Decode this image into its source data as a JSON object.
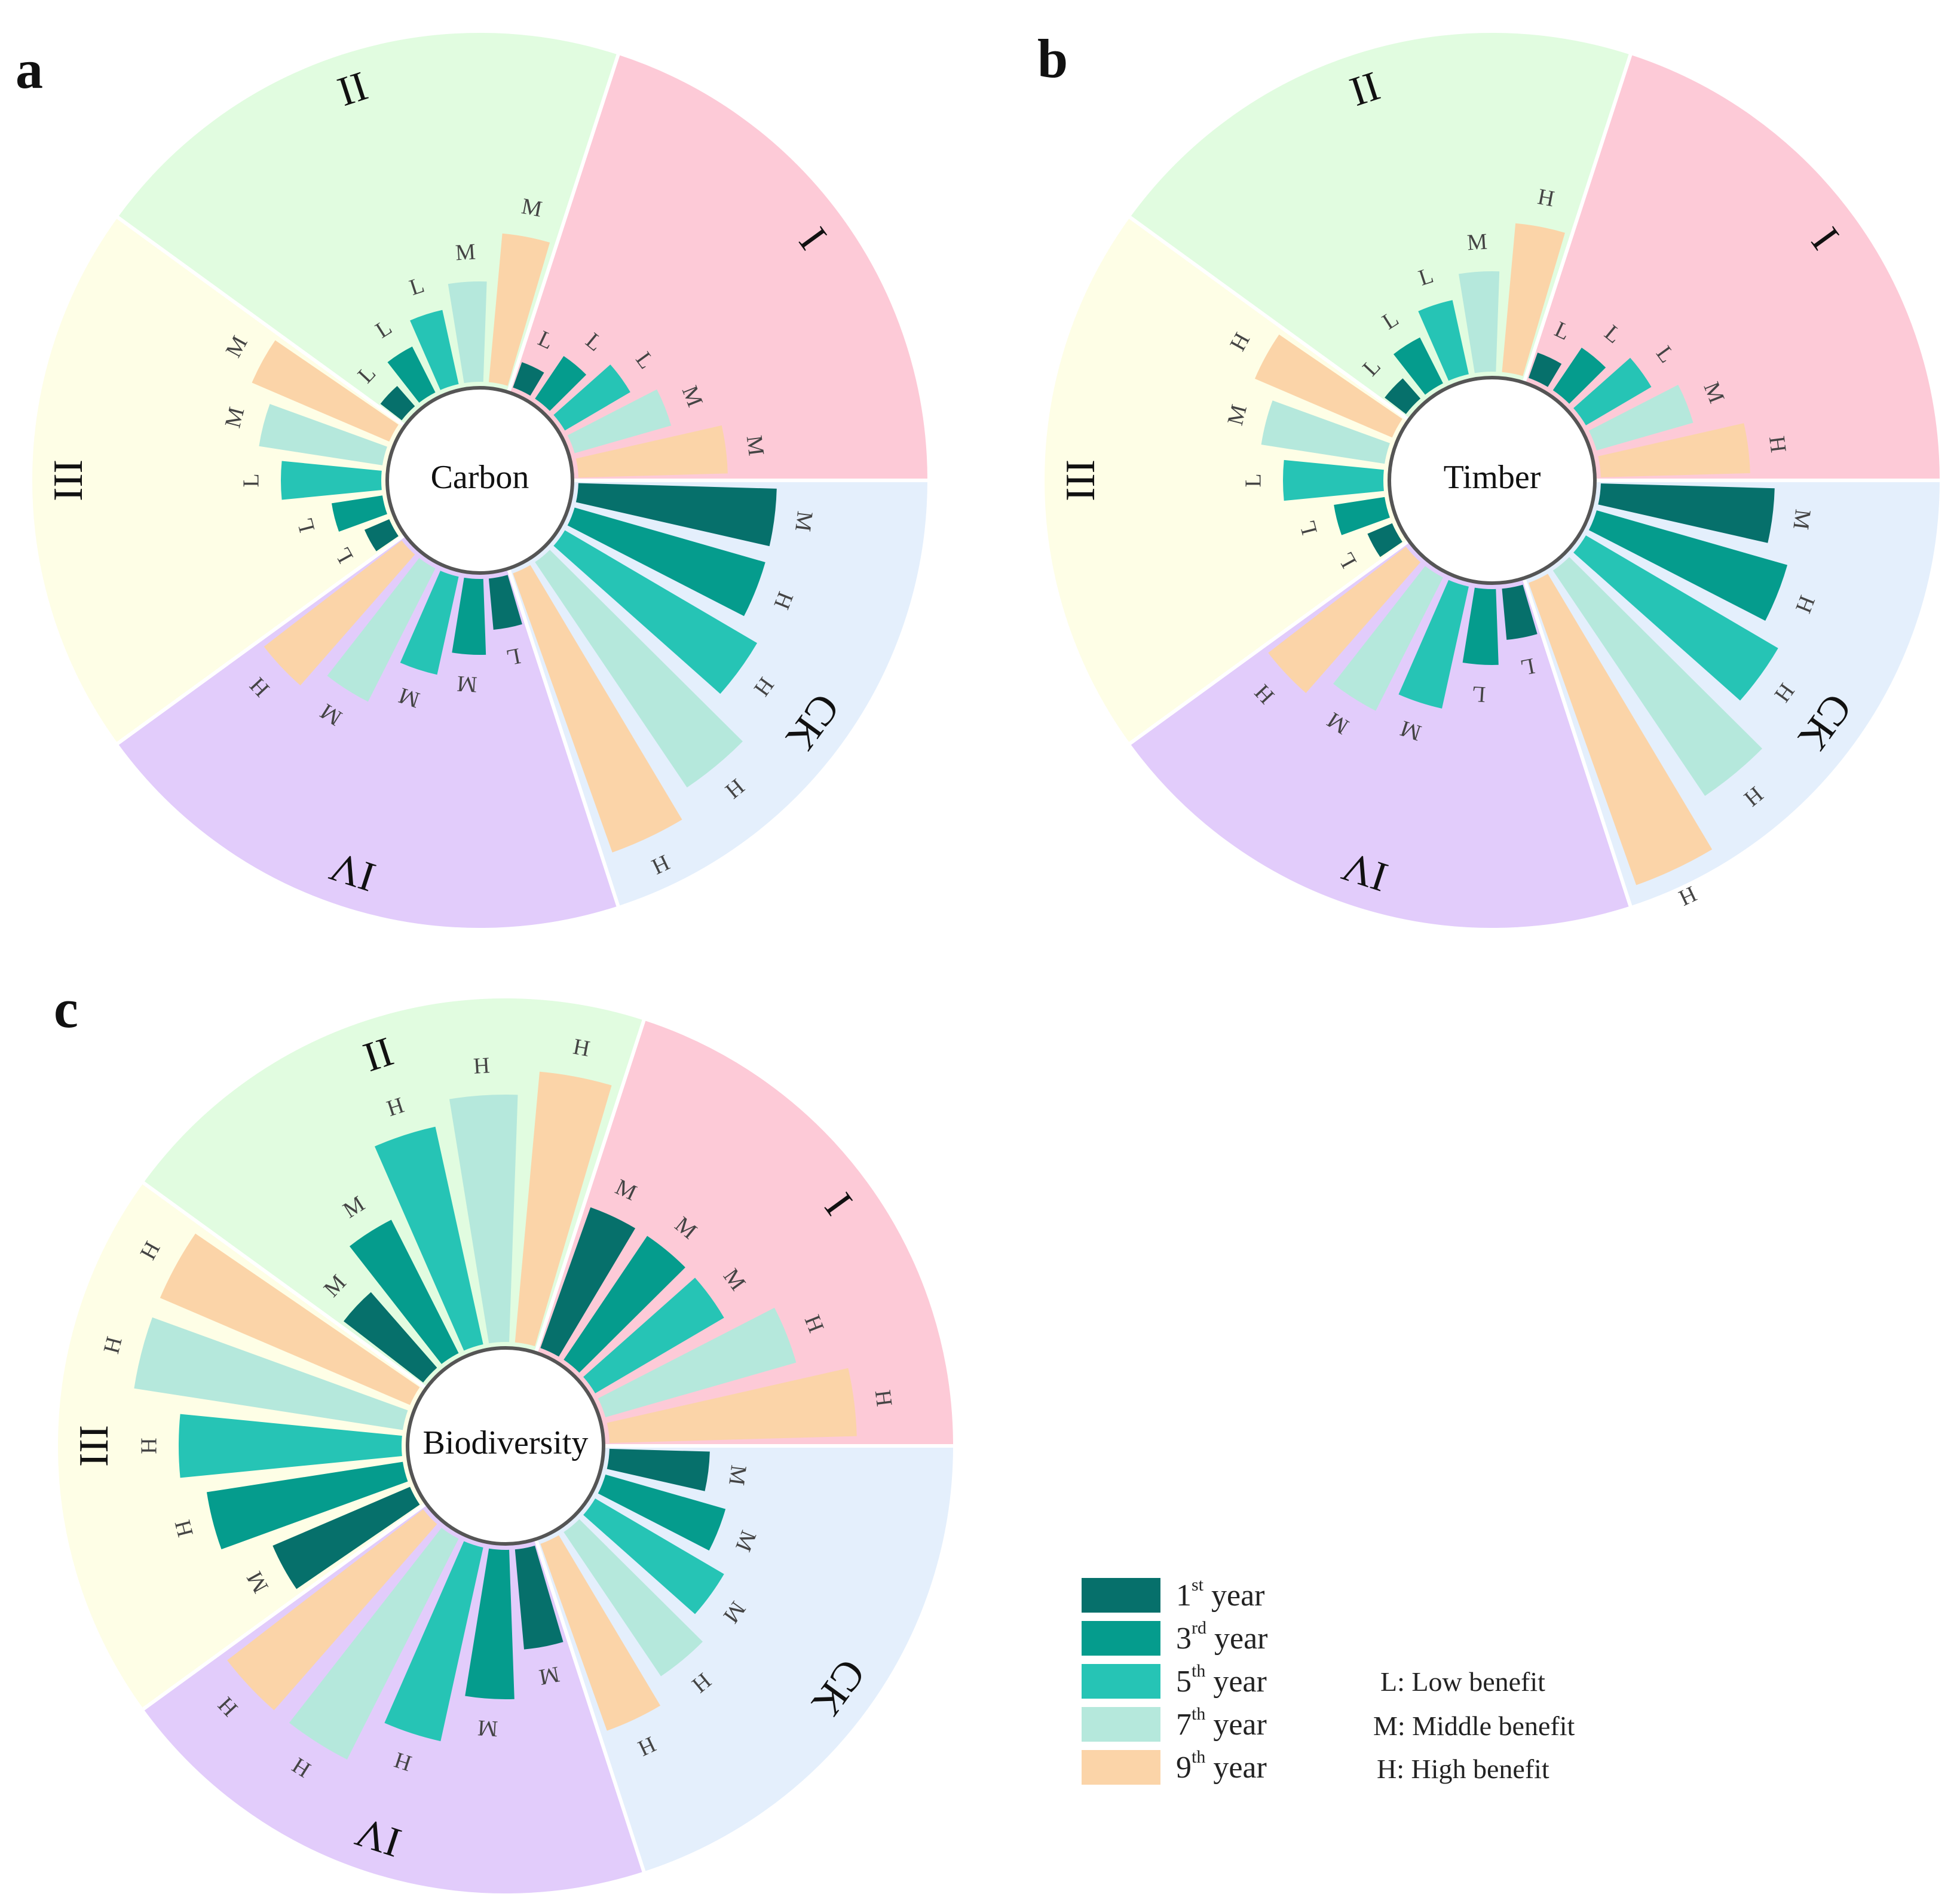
{
  "chart_data": [
    {
      "panel": "a",
      "type": "radial-bar",
      "center_label": "Carbon",
      "groups": [
        {
          "name": "I",
          "color": "#FDCAD7",
          "series_values": [
            1,
            2,
            3,
            4,
            6
          ],
          "benefit_labels": [
            "L",
            "L",
            "L",
            "M",
            "M"
          ]
        },
        {
          "name": "II",
          "color": "#E1FCE0",
          "series_values": [
            1,
            2,
            3,
            4,
            6
          ],
          "benefit_labels": [
            "L",
            "L",
            "L",
            "M",
            "M"
          ]
        },
        {
          "name": "III",
          "color": "#FEFEE6",
          "series_values": [
            1,
            2,
            4,
            5,
            6
          ],
          "benefit_labels": [
            "L",
            "L",
            "L",
            "M",
            "M"
          ]
        },
        {
          "name": "IV",
          "color": "#E2CCFB",
          "series_values": [
            2,
            3,
            4,
            6,
            7
          ],
          "benefit_labels": [
            "L",
            "M",
            "M",
            "M",
            "H"
          ]
        },
        {
          "name": "CK",
          "color": "#E4EFFC",
          "series_values": [
            8,
            8,
            9,
            11,
            12
          ],
          "benefit_labels": [
            "M",
            "H",
            "H",
            "H",
            "H"
          ]
        }
      ]
    },
    {
      "panel": "b",
      "type": "radial-bar",
      "center_label": "Timber",
      "groups": [
        {
          "name": "I",
          "color": "#FDCAD7",
          "series_values": [
            1,
            2,
            3,
            4,
            6
          ],
          "benefit_labels": [
            "L",
            "L",
            "L",
            "M",
            "H"
          ]
        },
        {
          "name": "II",
          "color": "#E1FCE0",
          "series_values": [
            1,
            2,
            3,
            4,
            6
          ],
          "benefit_labels": [
            "L",
            "L",
            "L",
            "M",
            "H"
          ]
        },
        {
          "name": "III",
          "color": "#FEFEE6",
          "series_values": [
            1,
            2,
            4,
            5,
            6
          ],
          "benefit_labels": [
            "L",
            "L",
            "L",
            "M",
            "H"
          ]
        },
        {
          "name": "IV",
          "color": "#E2CCFB",
          "series_values": [
            2,
            3,
            5,
            6,
            7
          ],
          "benefit_labels": [
            "L",
            "L",
            "M",
            "M",
            "H"
          ]
        },
        {
          "name": "CK",
          "color": "#E4EFFC",
          "series_values": [
            7,
            8,
            9,
            11,
            13
          ],
          "benefit_labels": [
            "M",
            "H",
            "H",
            "H",
            "H"
          ]
        }
      ]
    },
    {
      "panel": "c",
      "type": "radial-bar",
      "center_label": "Biodiversity",
      "groups": [
        {
          "name": "I",
          "color": "#FDCAD7",
          "series_values": [
            6,
            6,
            6,
            8,
            10
          ],
          "benefit_labels": [
            "M",
            "M",
            "M",
            "H",
            "H"
          ]
        },
        {
          "name": "II",
          "color": "#E1FCE0",
          "series_values": [
            4,
            6,
            9,
            10,
            11
          ],
          "benefit_labels": [
            "M",
            "M",
            "H",
            "H",
            "H"
          ]
        },
        {
          "name": "III",
          "color": "#FEFEE6",
          "series_values": [
            6,
            8,
            9,
            11,
            11
          ],
          "benefit_labels": [
            "M",
            "H",
            "H",
            "H",
            "H"
          ]
        },
        {
          "name": "IV",
          "color": "#E2CCFB",
          "series_values": [
            4,
            6,
            8,
            10,
            10
          ],
          "benefit_labels": [
            "M",
            "M",
            "H",
            "H",
            "H"
          ]
        },
        {
          "name": "CK",
          "color": "#E4EFFC",
          "series_values": [
            4,
            5,
            6,
            7,
            8
          ],
          "benefit_labels": [
            "M",
            "M",
            "M",
            "H",
            "H"
          ]
        }
      ]
    }
  ],
  "panels": {
    "a": "a",
    "b": "b",
    "c": "c"
  },
  "legend": {
    "series": [
      {
        "num": "1",
        "sup": "st",
        "label": "year",
        "color": "#06706B"
      },
      {
        "num": "3",
        "sup": "rd",
        "label": "year",
        "color": "#059C8D"
      },
      {
        "num": "5",
        "sup": "th",
        "label": "year",
        "color": "#26C4B5"
      },
      {
        "num": "7",
        "sup": "th",
        "label": "year",
        "color": "#B5E8DC"
      },
      {
        "num": "9",
        "sup": "th",
        "label": "year",
        "color": "#FBD4A8"
      }
    ],
    "benefits": {
      "low": "L: Low benefit",
      "middle": "M: Middle benefit",
      "high": "H: High benefit"
    }
  }
}
